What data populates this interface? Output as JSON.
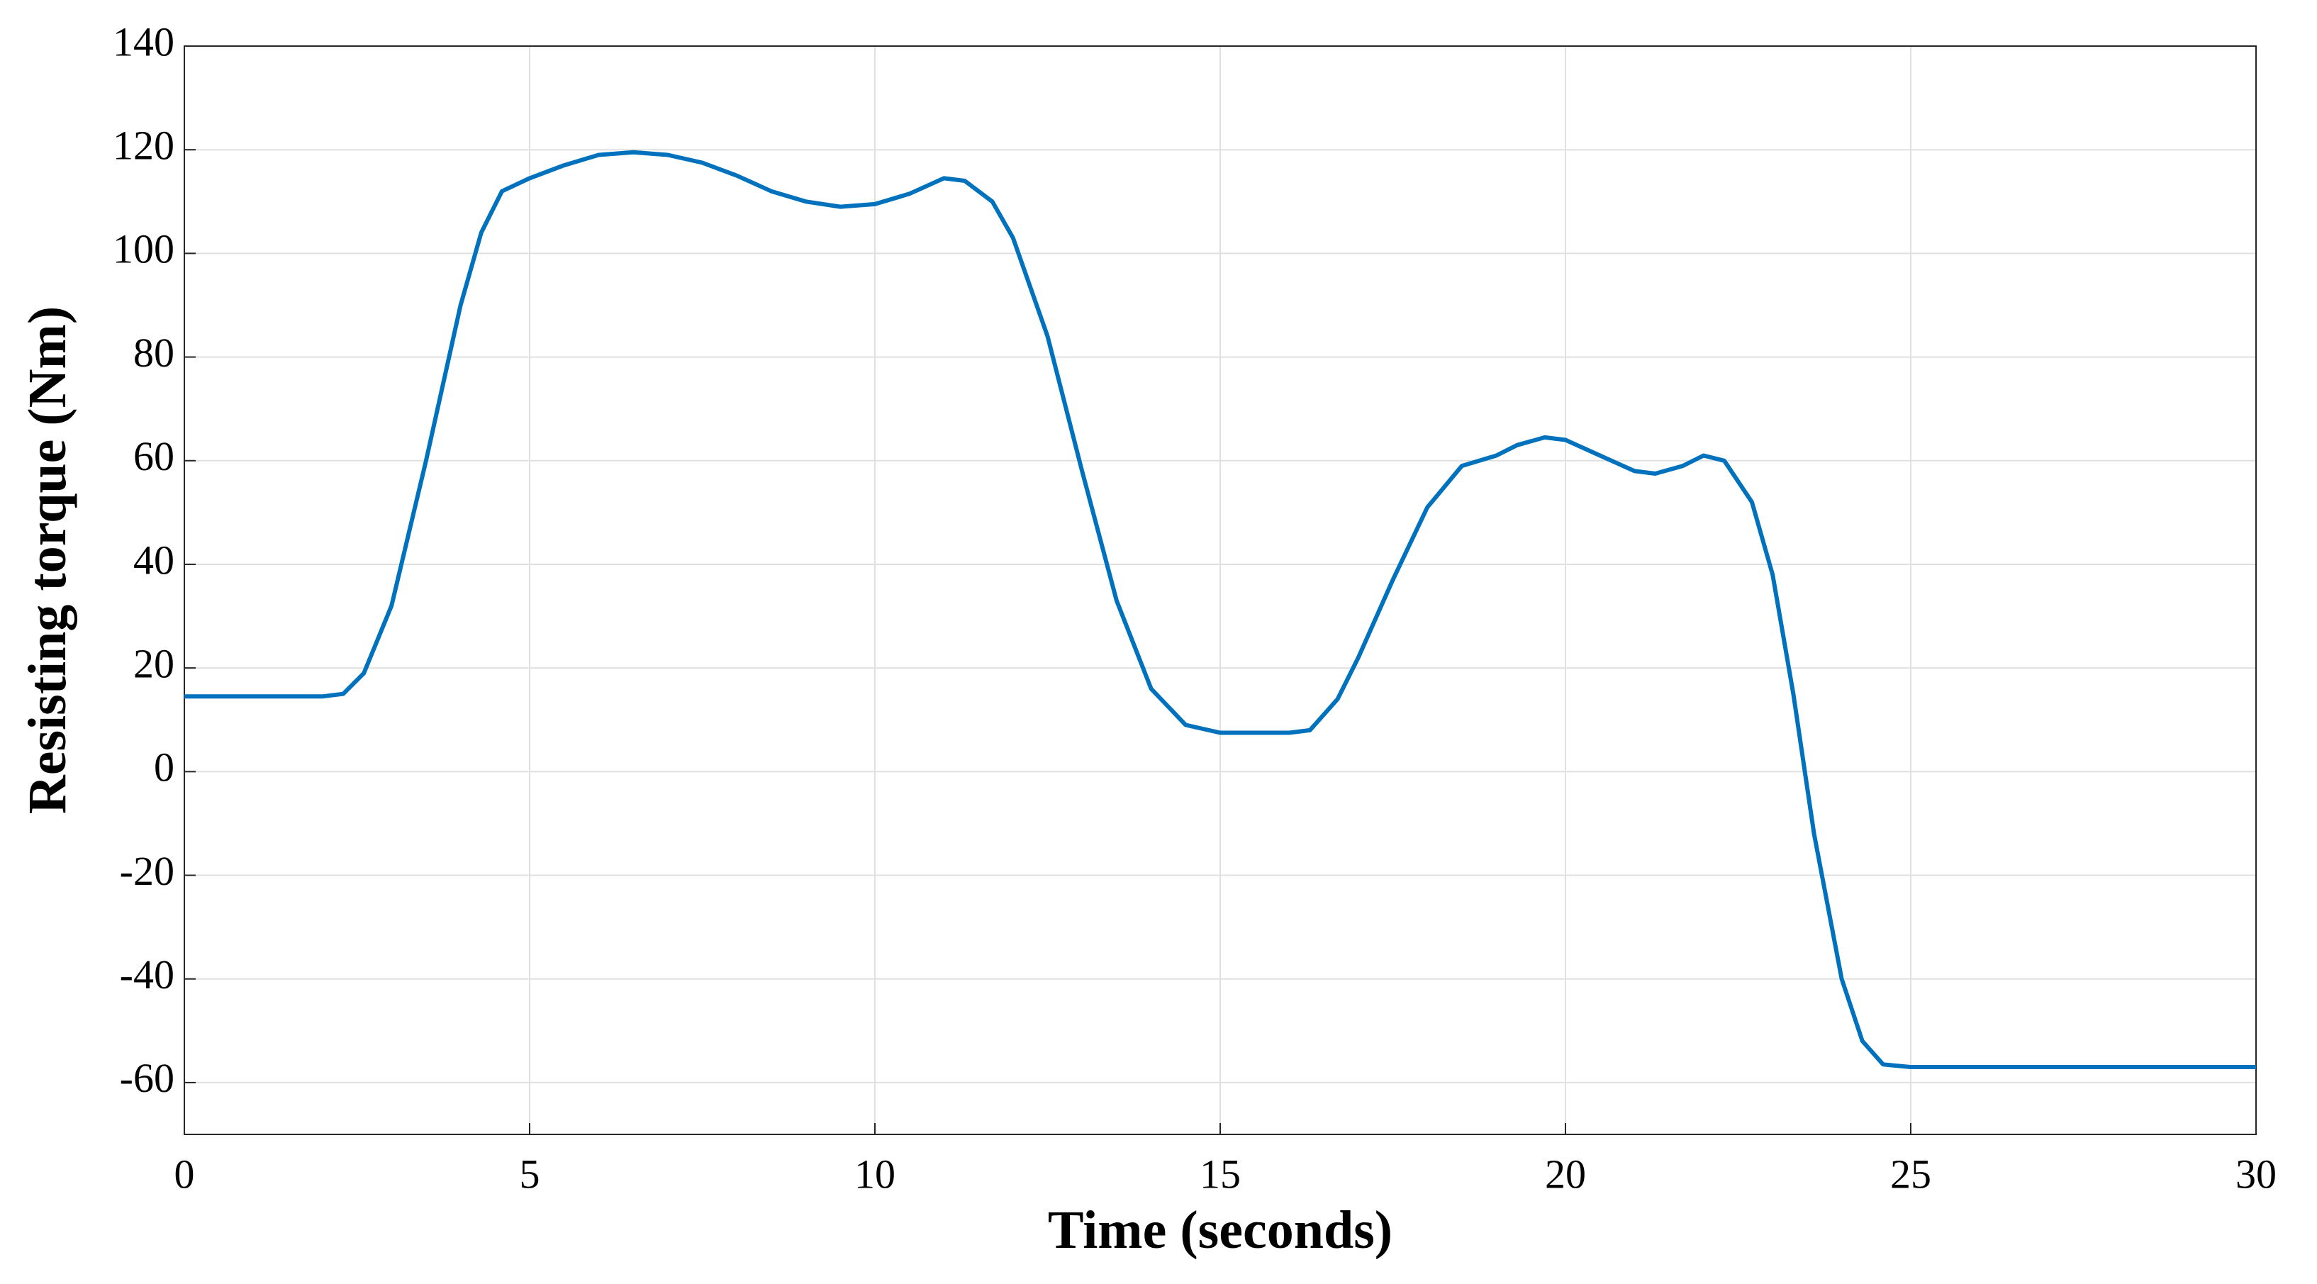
{
  "chart_data": {
    "type": "line",
    "x_label": "Time (seconds)",
    "y_label": "Resisting torque (Nm)",
    "x": [
      0,
      1,
      2,
      2.3,
      2.6,
      3,
      3.5,
      4,
      4.3,
      4.6,
      5,
      5.5,
      6,
      6.5,
      7,
      7.5,
      8,
      8.5,
      9,
      9.5,
      10,
      10.5,
      11,
      11.3,
      11.7,
      12,
      12.5,
      13,
      13.5,
      14,
      14.5,
      15,
      15.5,
      16,
      16.3,
      16.7,
      17,
      17.5,
      18,
      18.5,
      19,
      19.3,
      19.7,
      20,
      20.5,
      21,
      21.3,
      21.7,
      22,
      22.3,
      22.7,
      23,
      23.3,
      23.6,
      24,
      24.3,
      24.6,
      25,
      26,
      27,
      28,
      29,
      30
    ],
    "values": [
      14.5,
      14.5,
      14.5,
      15,
      19,
      32,
      60,
      90,
      104,
      112,
      114.5,
      117,
      119,
      119.5,
      119,
      117.5,
      115,
      112,
      110,
      109,
      109.5,
      111.5,
      114.5,
      114,
      110,
      103,
      84,
      58,
      33,
      16,
      9,
      7.5,
      7.5,
      7.5,
      8,
      14,
      22,
      37,
      51,
      59,
      61,
      63,
      64.5,
      64,
      61,
      58,
      57.5,
      59,
      61,
      60,
      52,
      38,
      15,
      -12,
      -40,
      -52,
      -56.5,
      -57,
      -57,
      -57,
      -57,
      -57,
      -57
    ],
    "color": "#0072bd",
    "xlim": [
      0,
      30
    ],
    "xticks": [
      0,
      5,
      10,
      15,
      20,
      25,
      30
    ],
    "ylim": [
      -70,
      140
    ],
    "yticks": [
      -60,
      -40,
      -20,
      0,
      20,
      40,
      60,
      80,
      100,
      120,
      140
    ],
    "grid": true
  }
}
